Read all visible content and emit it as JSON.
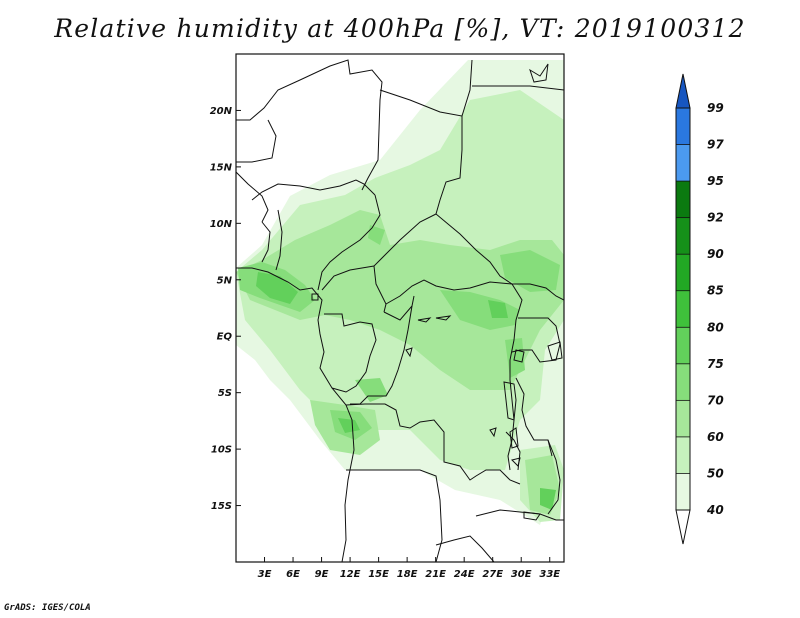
{
  "title": "Relative humidity at 400hPa [%], VT: 2019100312",
  "footer": "GrADS: IGES/COLA",
  "map": {
    "lon_range": [
      0,
      34.5
    ],
    "lat_range": [
      -20,
      25
    ],
    "x_ticks": [
      {
        "value": 3,
        "label": "3E"
      },
      {
        "value": 6,
        "label": "6E"
      },
      {
        "value": 9,
        "label": "9E"
      },
      {
        "value": 12,
        "label": "12E"
      },
      {
        "value": 15,
        "label": "15E"
      },
      {
        "value": 18,
        "label": "18E"
      },
      {
        "value": 21,
        "label": "21E"
      },
      {
        "value": 24,
        "label": "24E"
      },
      {
        "value": 27,
        "label": "27E"
      },
      {
        "value": 30,
        "label": "30E"
      },
      {
        "value": 33,
        "label": "33E"
      }
    ],
    "y_ticks": [
      {
        "value": 20,
        "label": "20N"
      },
      {
        "value": 15,
        "label": "15N"
      },
      {
        "value": 10,
        "label": "10N"
      },
      {
        "value": 5,
        "label": "5N"
      },
      {
        "value": 0,
        "label": "EQ"
      },
      {
        "value": -5,
        "label": "5S"
      },
      {
        "value": -10,
        "label": "10S"
      },
      {
        "value": -15,
        "label": "15S"
      }
    ]
  },
  "colorbar": {
    "levels": [
      "40",
      "50",
      "60",
      "70",
      "75",
      "80",
      "85",
      "90",
      "92",
      "95",
      "97",
      "99"
    ],
    "colors": [
      "#ffffff",
      "#e6f8e2",
      "#c6f1bd",
      "#a6e79a",
      "#86dd7b",
      "#62d05b",
      "#3fc13b",
      "#22a824",
      "#159019",
      "#0b7a10",
      "#4b9af0",
      "#2a78e0",
      "#1756c0"
    ]
  }
}
